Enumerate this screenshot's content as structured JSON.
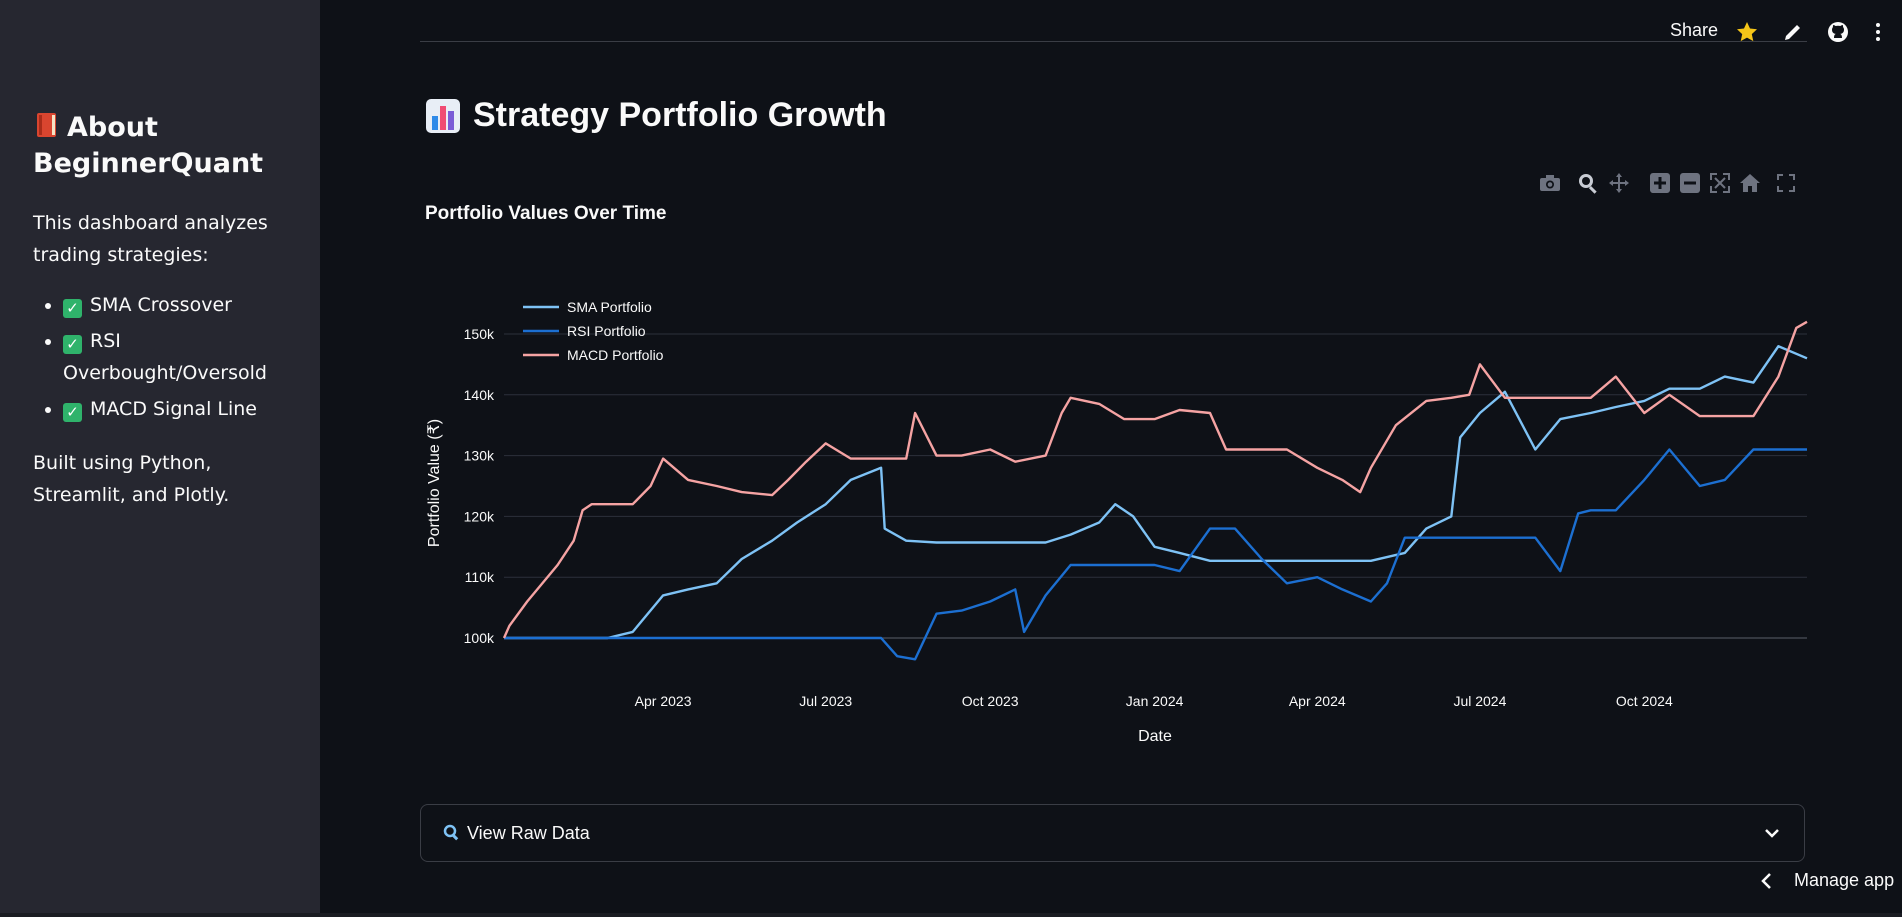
{
  "sidebar": {
    "title": "About BeginnerQuant",
    "title_icon": "book-icon",
    "description": "This dashboard analyzes trading strategies:",
    "items": [
      {
        "label": "SMA Crossover"
      },
      {
        "label": "RSI Overbought/Oversold"
      },
      {
        "label": "MACD Signal Line"
      }
    ],
    "check_icon": "check-mark-icon",
    "built_with": "Built using Python, Streamlit, and Plotly."
  },
  "toolbar": {
    "share_label": "Share",
    "icons": [
      "star-icon",
      "pencil-icon",
      "github-icon",
      "more-icon"
    ]
  },
  "main": {
    "title": "Strategy Portfolio Growth",
    "title_icon": "bar-chart-icon",
    "chart_title": "Portfolio Values Over Time",
    "modebar_icons": [
      "camera-icon",
      "zoom-icon",
      "pan-icon",
      "zoom-in-icon",
      "zoom-out-icon",
      "autoscale-icon",
      "reset-axes-icon",
      "fullscreen-icon"
    ],
    "expander_label": "View Raw Data",
    "expander_icon": "magnifier-icon"
  },
  "footer": {
    "manage_label": "Manage app"
  },
  "colors": {
    "sma": "#7ec2f5",
    "rsi": "#1c6fd1",
    "macd": "#f5a3a3",
    "background": "#0e1117",
    "sidebar": "#262730"
  },
  "chart_data": {
    "type": "line",
    "title": "Portfolio Values Over Time",
    "xlabel": "Date",
    "ylabel": "Portfolio Value (₹)",
    "x_ticks": [
      "Apr 2023",
      "Jul 2023",
      "Oct 2023",
      "Jan 2024",
      "Apr 2024",
      "Jul 2024",
      "Oct 2024"
    ],
    "y_ticks": [
      "100k",
      "110k",
      "120k",
      "130k",
      "140k",
      "150k"
    ],
    "xlim": [
      "2023-01-02",
      "2024-12-31"
    ],
    "ylim": [
      95000,
      157000
    ],
    "grid": true,
    "legend": "top-left",
    "series": [
      {
        "name": "SMA Portfolio",
        "color": "#7ec2f5",
        "x": [
          "2023-01-02",
          "2023-02-01",
          "2023-03-01",
          "2023-03-15",
          "2023-04-01",
          "2023-04-15",
          "2023-05-01",
          "2023-05-15",
          "2023-06-01",
          "2023-06-15",
          "2023-07-01",
          "2023-07-15",
          "2023-08-01",
          "2023-08-03",
          "2023-08-15",
          "2023-09-01",
          "2023-10-01",
          "2023-11-01",
          "2023-11-15",
          "2023-12-01",
          "2023-12-10",
          "2023-12-20",
          "2024-01-01",
          "2024-01-15",
          "2024-02-01",
          "2024-03-01",
          "2024-04-01",
          "2024-05-01",
          "2024-05-20",
          "2024-06-01",
          "2024-06-15",
          "2024-06-20",
          "2024-07-01",
          "2024-07-15",
          "2024-08-01",
          "2024-08-15",
          "2024-09-01",
          "2024-09-15",
          "2024-10-01",
          "2024-10-15",
          "2024-11-01",
          "2024-11-15",
          "2024-12-01",
          "2024-12-15",
          "2024-12-31"
        ],
        "values": [
          100000,
          100000,
          100000,
          101000,
          107000,
          108000,
          109000,
          113000,
          116000,
          119000,
          122000,
          126000,
          128000,
          118000,
          116000,
          115700,
          115700,
          115700,
          117000,
          119000,
          122000,
          120000,
          115000,
          114000,
          112700,
          112700,
          112700,
          112700,
          114000,
          118000,
          120000,
          133000,
          137000,
          140500,
          131000,
          136000,
          137000,
          138000,
          139000,
          141000,
          141000,
          143000,
          142000,
          148000,
          146000
        ]
      },
      {
        "name": "RSI Portfolio",
        "color": "#1c6fd1",
        "x": [
          "2023-01-02",
          "2023-03-01",
          "2023-04-01",
          "2023-05-01",
          "2023-06-01",
          "2023-07-01",
          "2023-08-01",
          "2023-08-10",
          "2023-08-20",
          "2023-09-01",
          "2023-09-15",
          "2023-10-01",
          "2023-10-15",
          "2023-10-20",
          "2023-11-01",
          "2023-11-15",
          "2023-12-01",
          "2023-12-15",
          "2024-01-01",
          "2024-01-15",
          "2024-02-01",
          "2024-02-15",
          "2024-03-01",
          "2024-03-15",
          "2024-04-01",
          "2024-04-15",
          "2024-05-01",
          "2024-05-10",
          "2024-05-20",
          "2024-06-01",
          "2024-07-01",
          "2024-08-01",
          "2024-08-15",
          "2024-08-25",
          "2024-09-01",
          "2024-09-15",
          "2024-10-01",
          "2024-10-15",
          "2024-11-01",
          "2024-11-15",
          "2024-12-01",
          "2024-12-31"
        ],
        "values": [
          100000,
          100000,
          100000,
          100000,
          100000,
          100000,
          100000,
          97000,
          96500,
          104000,
          104500,
          106000,
          108000,
          101000,
          107000,
          112000,
          112000,
          112000,
          112000,
          111000,
          118000,
          118000,
          113000,
          109000,
          110000,
          108000,
          106000,
          109000,
          116500,
          116500,
          116500,
          116500,
          111000,
          120500,
          121000,
          121000,
          126000,
          131000,
          125000,
          126000,
          131000,
          131000
        ]
      },
      {
        "name": "MACD Portfolio",
        "color": "#f5a3a3",
        "x": [
          "2023-01-02",
          "2023-01-05",
          "2023-01-15",
          "2023-02-01",
          "2023-02-10",
          "2023-02-15",
          "2023-02-20",
          "2023-03-01",
          "2023-03-15",
          "2023-03-25",
          "2023-04-01",
          "2023-04-15",
          "2023-05-01",
          "2023-05-15",
          "2023-06-01",
          "2023-06-10",
          "2023-06-20",
          "2023-07-01",
          "2023-07-15",
          "2023-08-01",
          "2023-08-15",
          "2023-08-20",
          "2023-09-01",
          "2023-09-15",
          "2023-10-01",
          "2023-10-15",
          "2023-11-01",
          "2023-11-10",
          "2023-11-15",
          "2023-12-01",
          "2023-12-15",
          "2024-01-01",
          "2024-01-15",
          "2024-02-01",
          "2024-02-10",
          "2024-02-15",
          "2024-03-01",
          "2024-03-15",
          "2024-04-01",
          "2024-04-15",
          "2024-04-25",
          "2024-05-01",
          "2024-05-15",
          "2024-06-01",
          "2024-06-15",
          "2024-06-25",
          "2024-07-01",
          "2024-07-15",
          "2024-08-01",
          "2024-08-15",
          "2024-09-01",
          "2024-09-15",
          "2024-10-01",
          "2024-10-15",
          "2024-11-01",
          "2024-11-15",
          "2024-12-01",
          "2024-12-15",
          "2024-12-25",
          "2024-12-31"
        ],
        "values": [
          100000,
          102000,
          106000,
          112000,
          116000,
          121000,
          122000,
          122000,
          122000,
          125000,
          129500,
          126000,
          125000,
          124000,
          123500,
          126000,
          129000,
          132000,
          129500,
          129500,
          129500,
          137000,
          130000,
          130000,
          131000,
          129000,
          130000,
          137000,
          139500,
          138500,
          136000,
          136000,
          137500,
          137000,
          131000,
          131000,
          131000,
          131000,
          128000,
          126000,
          124000,
          128000,
          135000,
          139000,
          139500,
          140000,
          145000,
          139500,
          139500,
          139500,
          139500,
          143000,
          137000,
          140000,
          136500,
          136500,
          136500,
          143000,
          151000,
          152000
        ]
      }
    ]
  }
}
